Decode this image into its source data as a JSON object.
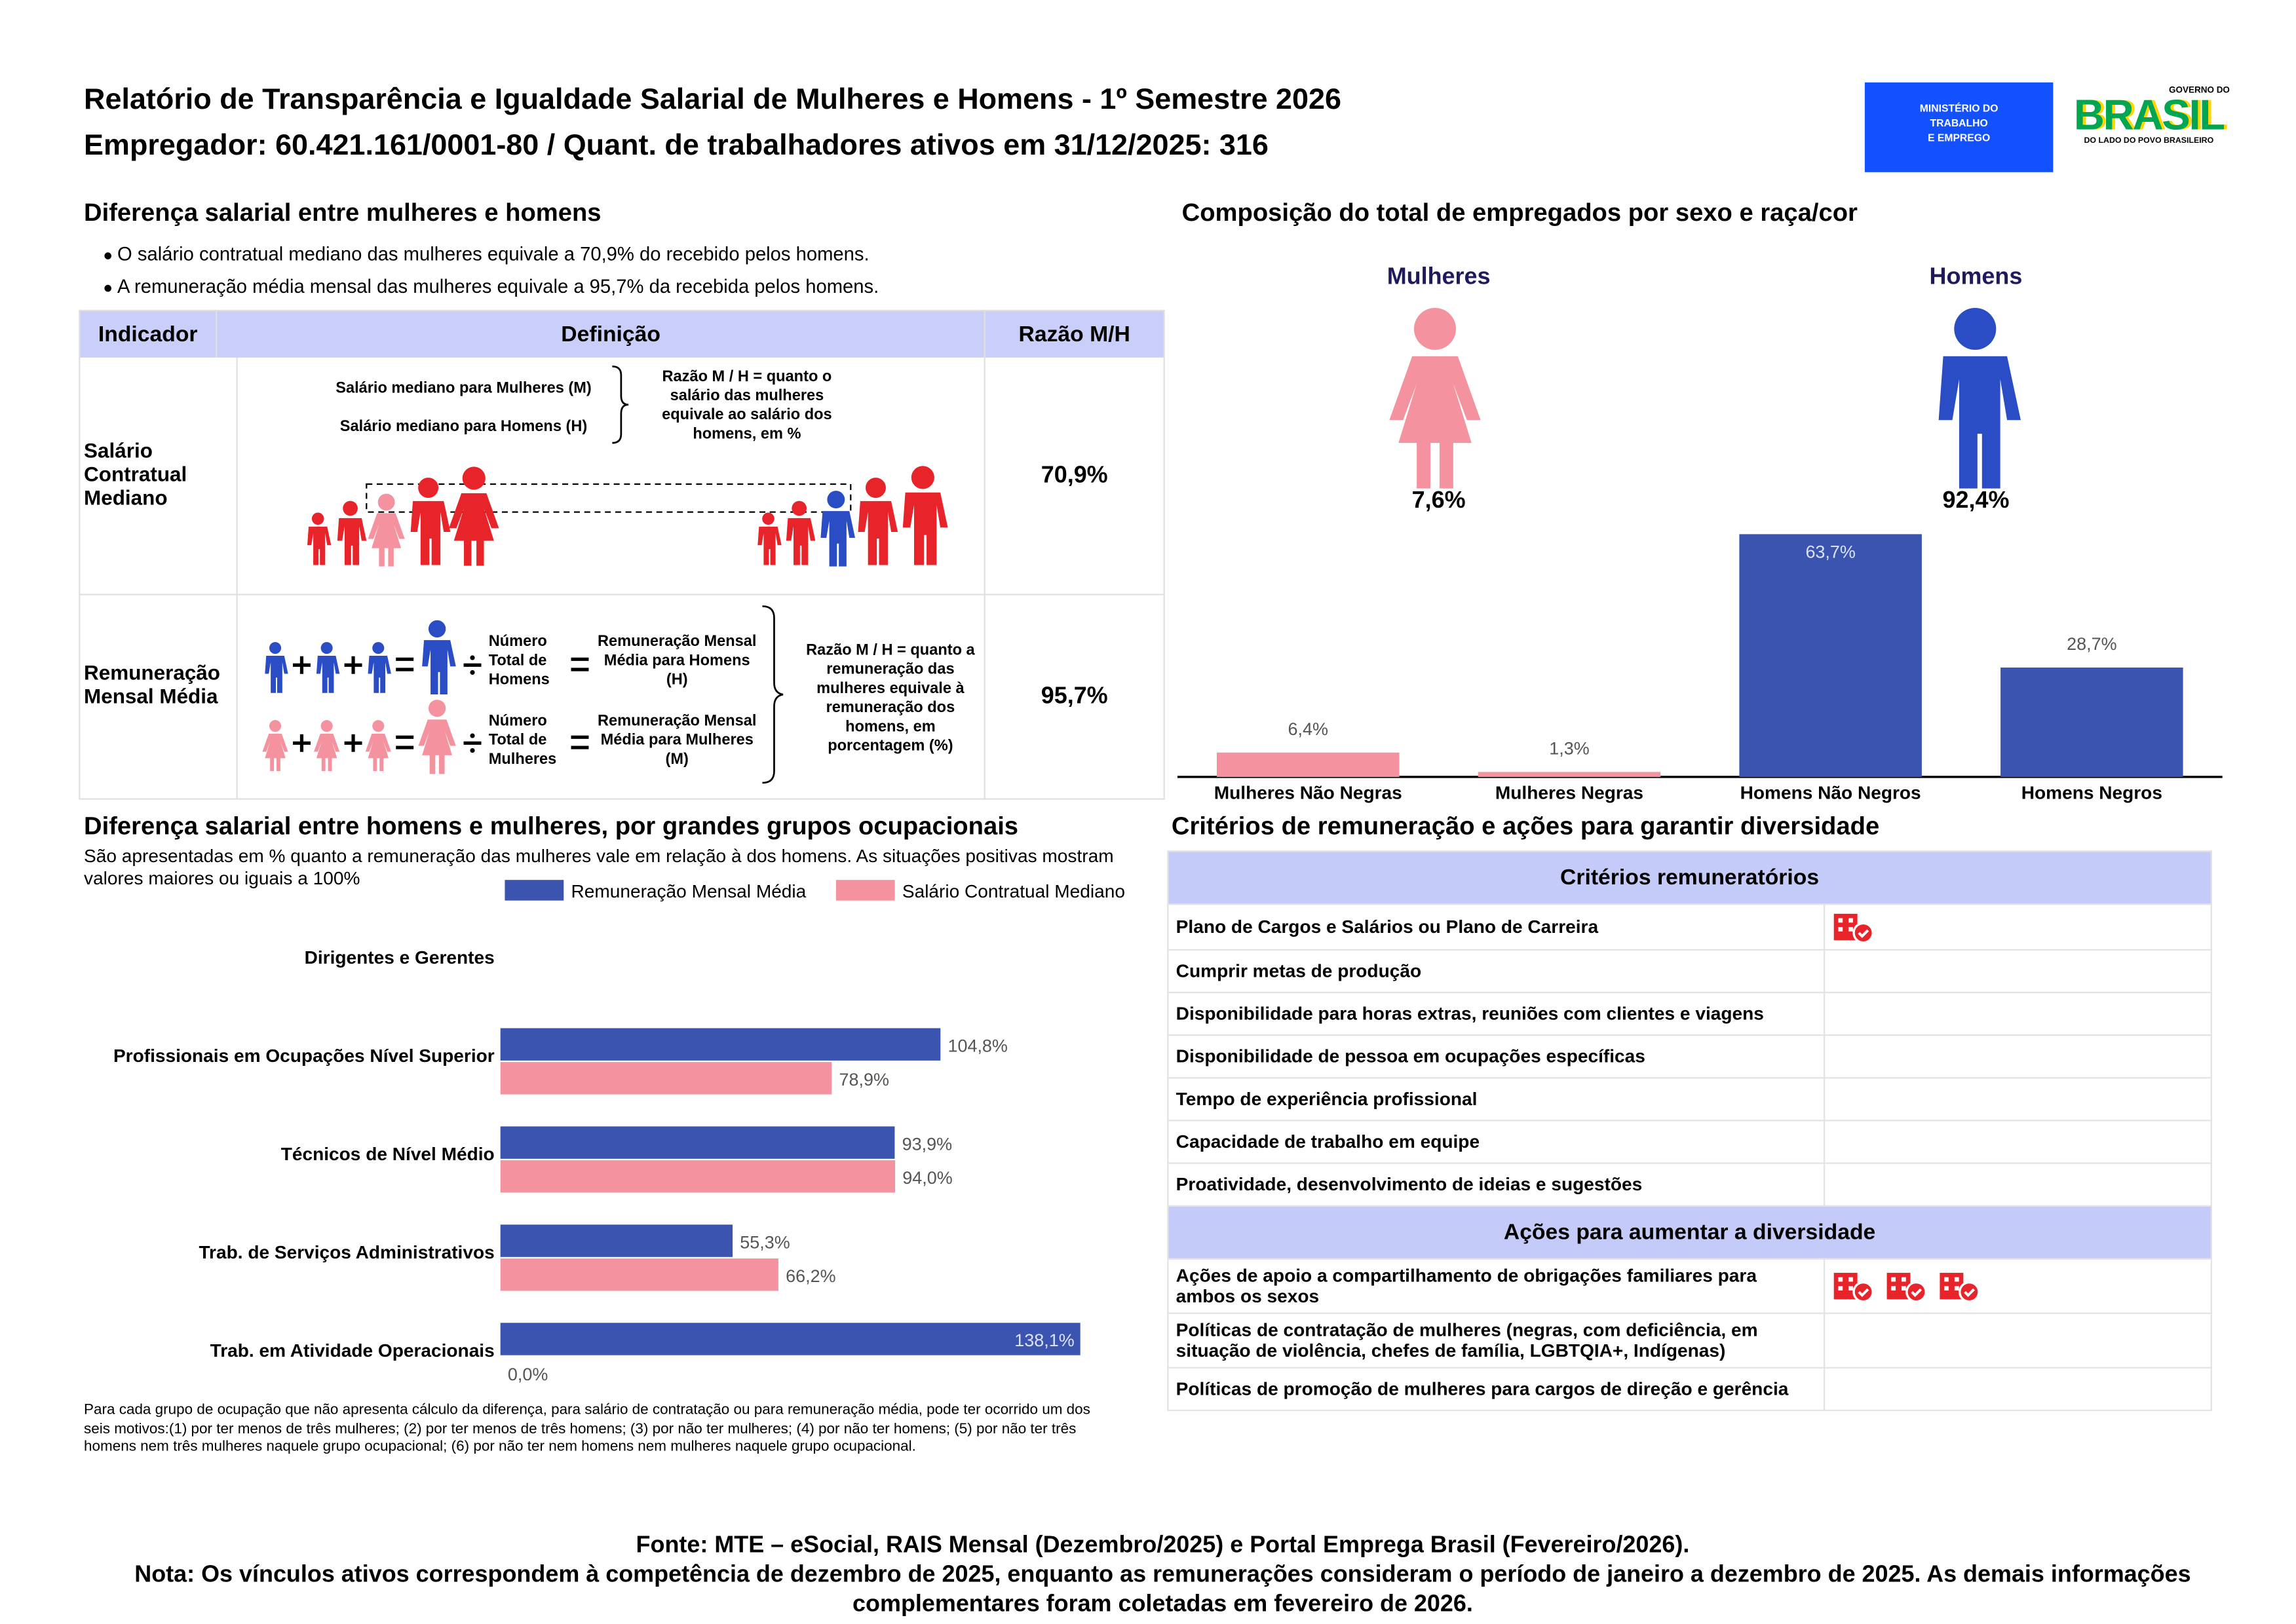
{
  "header": {
    "title": "Relatório de Transparência e Igualdade Salarial de Mulheres e Homens - 1º Semestre 2026",
    "subtitle": "Empregador: 60.421.161/0001-80 / Quant. de trabalhadores ativos em 31/12/2025: 316",
    "logo_ministry": [
      "MINISTÉRIO DO",
      "TRABALHO",
      "E EMPREGO"
    ],
    "logo_gov": {
      "top": "GOVERNO DO",
      "word": "BRASIL",
      "bottom": "DO LADO DO POVO BRASILEIRO"
    }
  },
  "salary_gap": {
    "title": "Diferença salarial entre mulheres e homens",
    "bullets": [
      "O salário contratual mediano das mulheres equivale a 70,9% do recebido pelos homens.",
      "A remuneração média mensal das mulheres equivale a 95,7% da recebida pelos homens."
    ],
    "table": {
      "headers": [
        "Indicador",
        "Definição",
        "Razão M/H"
      ],
      "rows": [
        {
          "indicator": "Salário Contratual Mediano",
          "definition": {
            "women": "Salário mediano para Mulheres (M)",
            "men": "Salário mediano para Homens (H)",
            "ratio": "Razão M / H = quanto o salário das mulheres equivale ao salário dos homens, em %"
          },
          "ratio": "70,9%"
        },
        {
          "indicator": "Remuneração Mensal Média",
          "definition": {
            "men_count": "Número Total de Homens",
            "men_avg": "Remuneração Mensal Média para Homens (H)",
            "women_count": "Número Total de Mulheres",
            "women_avg": "Remuneração Mensal Média para Mulheres (M)",
            "ratio": "Razão M / H = quanto a remuneração das mulheres equivale à remuneração dos homens, em porcentagem (%)"
          },
          "ratio": "95,7%"
        }
      ]
    }
  },
  "composition": {
    "women": {
      "label": "Mulheres",
      "share": "7,6%",
      "color": "#f4939f"
    },
    "men": {
      "label": "Homens",
      "share": "92,4%",
      "color": "#2a4cc4"
    }
  },
  "chart_data": [
    {
      "type": "bar",
      "title": "Composição do total de empregados por sexo e raça/cor",
      "categories": [
        "Mulheres Não Negras",
        "Mulheres Negras",
        "Homens Não Negros",
        "Homens Negros"
      ],
      "values": [
        6.4,
        1.3,
        63.7,
        28.7
      ],
      "value_labels": [
        "6,4%",
        "1,3%",
        "63,7%",
        "28,7%"
      ],
      "colors": [
        "#f4939f",
        "#f4939f",
        "#3b54b0",
        "#3b54b0"
      ]
    },
    {
      "type": "hbar",
      "title": "Diferença salarial entre homens e mulheres, por grandes grupos ocupacionais",
      "subtitle": "São apresentadas em % quanto a remuneração das mulheres vale em relação à dos homens. As situações positivas mostram valores maiores ou iguais a 100%",
      "categories": [
        "Dirigentes e Gerentes",
        "Profissionais em Ocupações Nível Superior",
        "Técnicos de Nível Médio",
        "Trab. de Serviços Administrativos",
        "Trab. em Atividade Operacionais"
      ],
      "series": [
        {
          "name": "Remuneração Mensal Média",
          "color": "#3b54b0",
          "values": [
            null,
            104.8,
            93.9,
            55.3,
            138.1
          ],
          "value_labels": [
            null,
            "104,8%",
            "93,9%",
            "55,3%",
            "138,1%"
          ]
        },
        {
          "name": "Salário Contratual Mediano",
          "color": "#f4939f",
          "values": [
            null,
            78.9,
            94.0,
            66.2,
            0.0
          ],
          "value_labels": [
            null,
            "78,9%",
            "94,0%",
            "66,2%",
            "0,0%"
          ]
        }
      ],
      "note": "Para cada grupo de ocupação que não apresenta cálculo da diferença, para salário de contratação ou para remuneração média, pode ter ocorrido um dos seis motivos:(1) por ter menos de três mulheres; (2) por ter menos de três homens; (3) por não ter mulheres; (4) por não ter homens; (5) por não ter três homens nem três mulheres naquele grupo ocupacional; (6) por não ter nem homens nem mulheres naquele grupo ocupacional."
    }
  ],
  "criteria": {
    "title": "Critérios de remuneração e ações para garantir diversidade",
    "sections": [
      {
        "heading": "Critérios remuneratórios",
        "rows": [
          {
            "label": "Plano de Cargos e Salários ou Plano de Carreira",
            "icons": 1
          },
          {
            "label": "Cumprir metas de produção",
            "icons": 0
          },
          {
            "label": "Disponibilidade para horas extras, reuniões com clientes e viagens",
            "icons": 0
          },
          {
            "label": "Disponibilidade de pessoa em ocupações específicas",
            "icons": 0
          },
          {
            "label": "Tempo de experiência profissional",
            "icons": 0
          },
          {
            "label": "Capacidade de trabalho em equipe",
            "icons": 0
          },
          {
            "label": "Proatividade, desenvolvimento de ideias e sugestões",
            "icons": 0
          }
        ]
      },
      {
        "heading": "Ações para aumentar a diversidade",
        "rows": [
          {
            "label": "Ações de apoio a compartilhamento de obrigações familiares para ambos os sexos",
            "icons": 3
          },
          {
            "label": "Políticas de contratação de mulheres (negras, com deficiência, em situação de violência, chefes de família, LGBTQIA+, Indígenas)",
            "icons": 0
          },
          {
            "label": "Políticas de promoção de mulheres para cargos de direção e gerência",
            "icons": 0
          }
        ]
      }
    ]
  },
  "footer": {
    "source": "Fonte: MTE – eSocial, RAIS Mensal (Dezembro/2025) e Portal Emprega Brasil (Fevereiro/2026).",
    "note": "Nota: Os vínculos ativos correspondem à competência de dezembro de 2025, enquanto as remunerações consideram o período de janeiro a dezembro de 2025. As demais informações complementares foram coletadas em fevereiro de 2026."
  }
}
